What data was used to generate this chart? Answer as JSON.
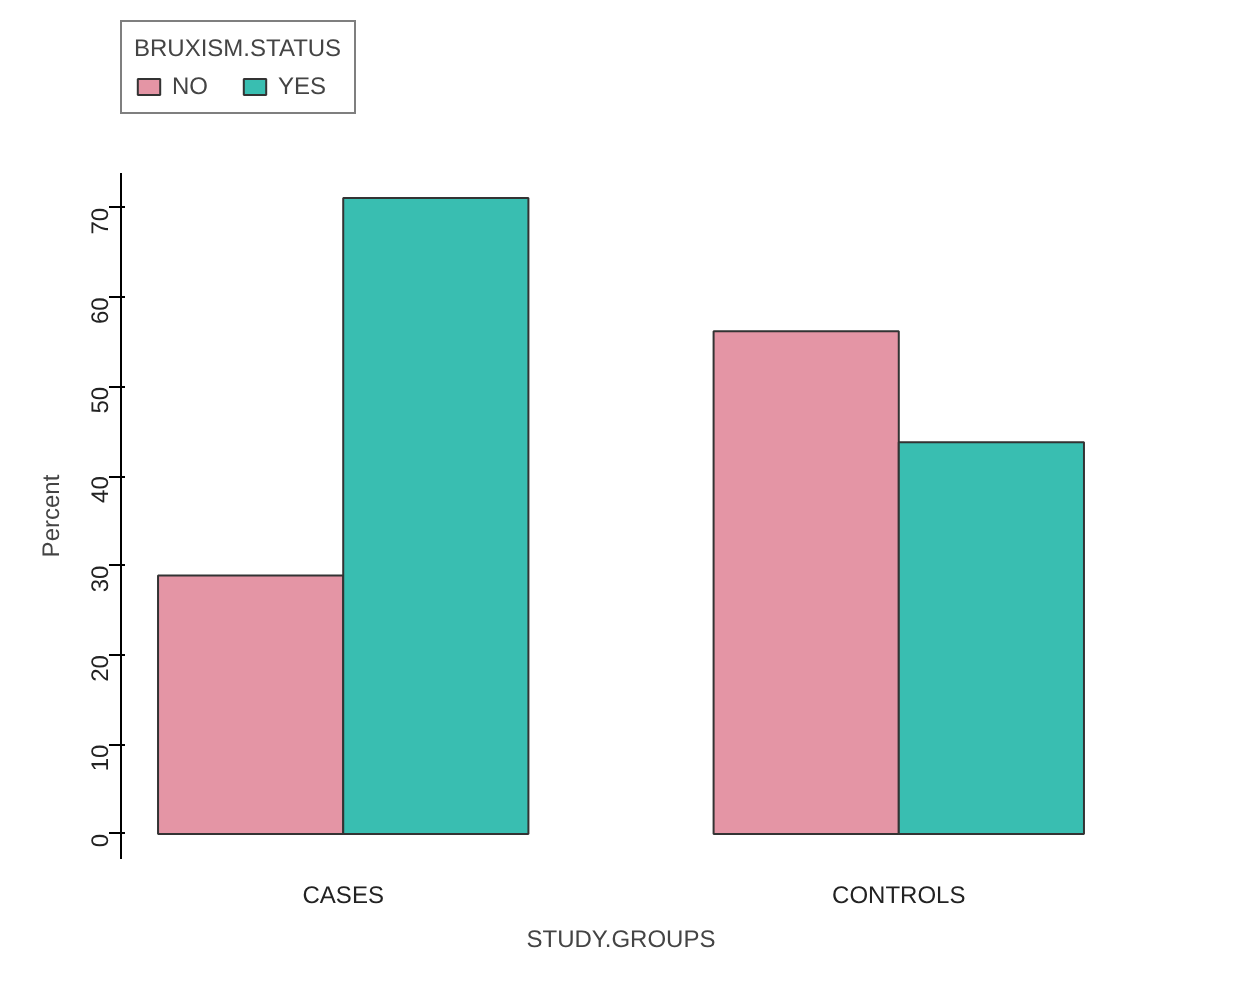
{
  "chart_data": {
    "type": "bar",
    "xlabel": "STUDY.GROUPS",
    "ylabel": "Percent",
    "legend_title": "BRUXISM.STATUS",
    "categories": [
      "CASES",
      "CONTROLS"
    ],
    "series": [
      {
        "name": "NO",
        "color": "#e495a5",
        "values": [
          28.9,
          56.2
        ]
      },
      {
        "name": "YES",
        "color": "#39beb1",
        "values": [
          71.1,
          43.8
        ]
      }
    ],
    "ylim": [
      -2.8,
      73.9
    ],
    "yticks": [
      0,
      10,
      20,
      30,
      40,
      50,
      60,
      70
    ],
    "grid": false,
    "legend": "top left"
  }
}
